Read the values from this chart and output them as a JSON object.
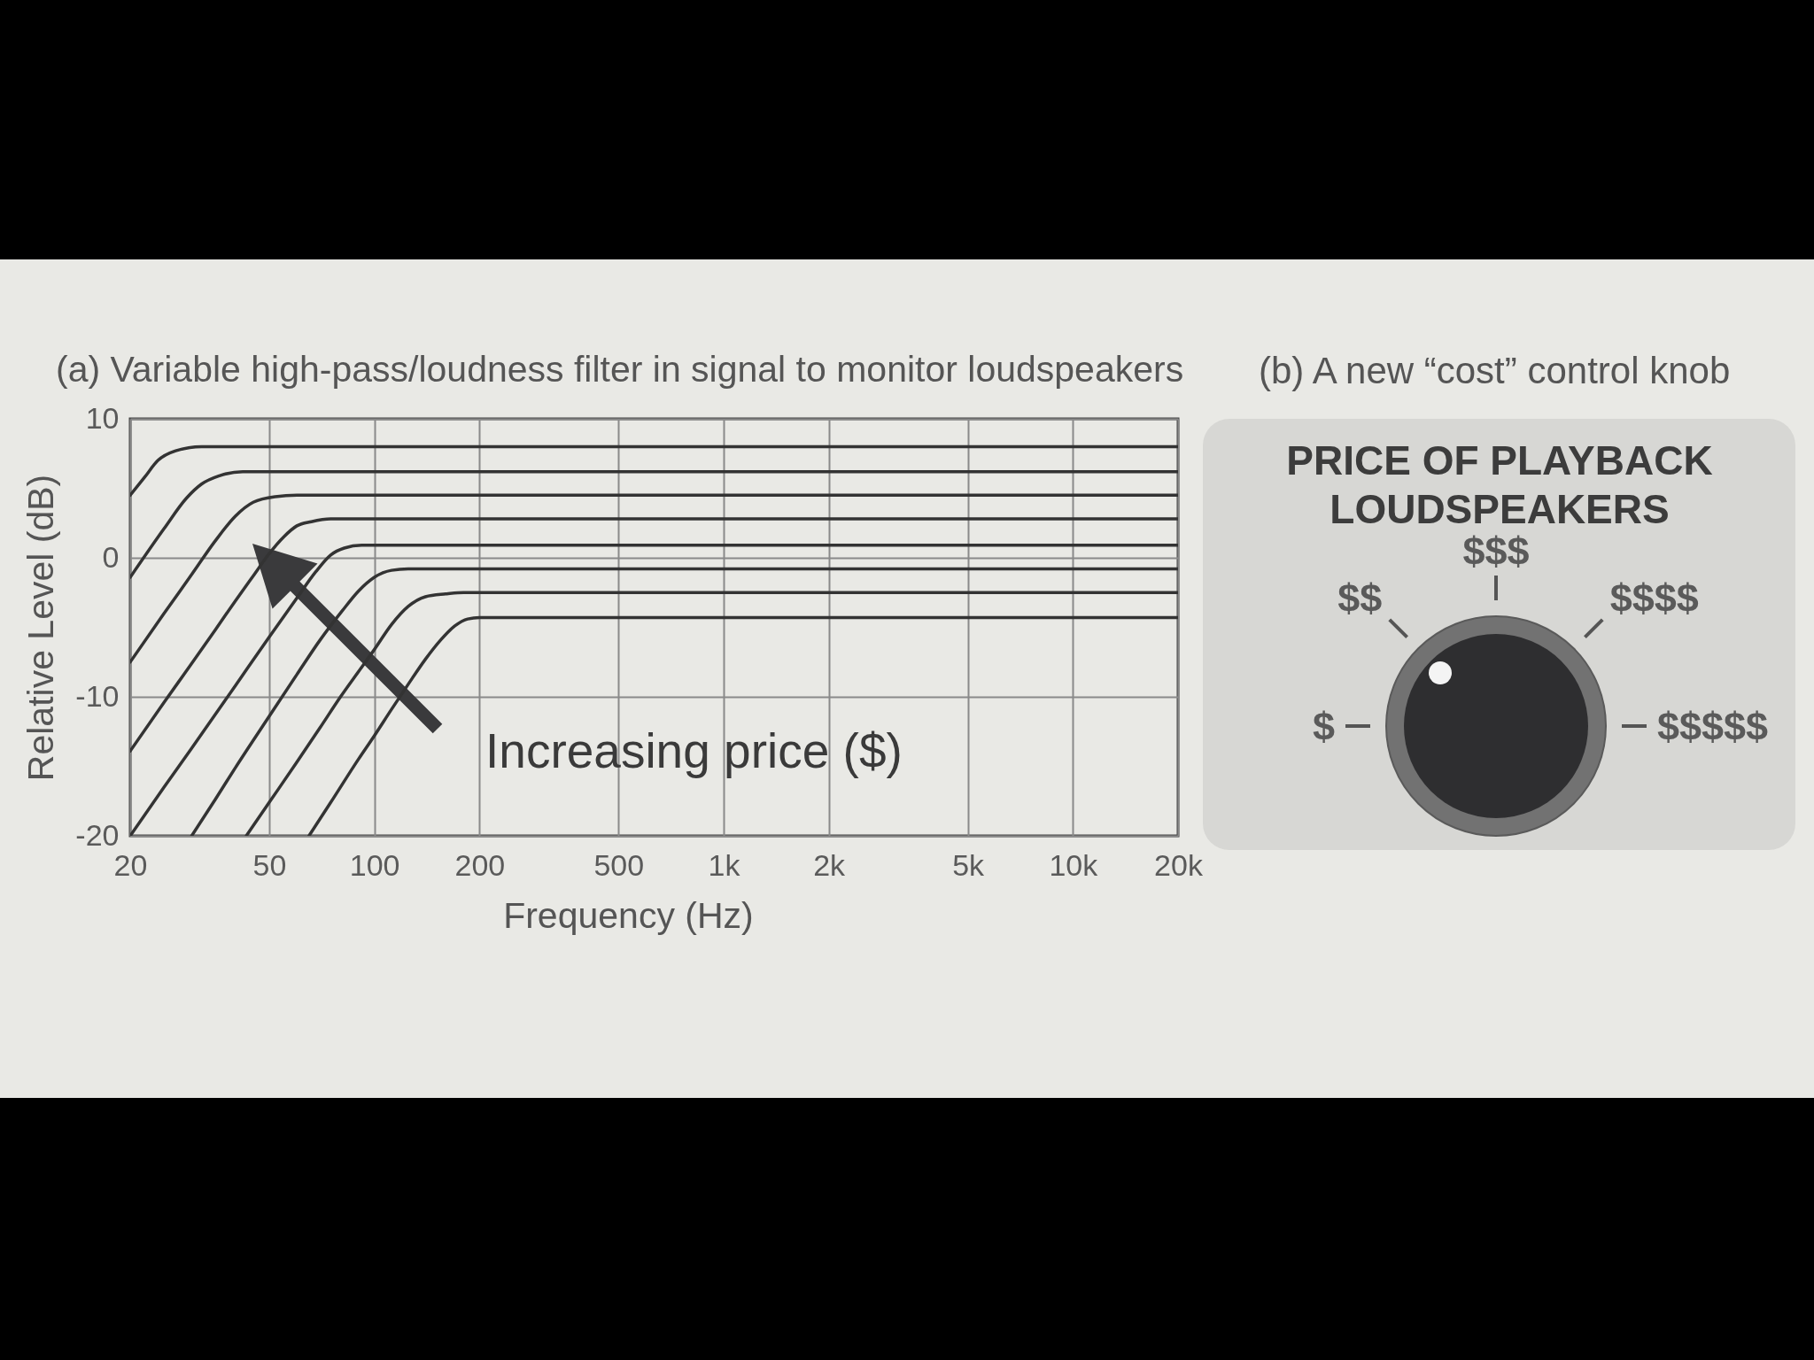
{
  "chart_data": [
    {
      "type": "line",
      "title": "(a) Variable high-pass/loudness filter in signal to monitor loudspeakers",
      "xlabel": "Frequency (Hz)",
      "ylabel": "Relative Level (dB)",
      "annotations": [
        "Increasing price ($)"
      ],
      "log": "x",
      "xlim": [
        20,
        20000
      ],
      "xticks": [
        20,
        50,
        100,
        200,
        500,
        {
          "value": 1000,
          "label": "1k"
        },
        {
          "value": 2000,
          "label": "2k"
        },
        {
          "value": 5000,
          "label": "5k"
        },
        {
          "value": 10000,
          "label": "10k"
        },
        {
          "value": 20000,
          "label": "20k"
        }
      ],
      "ylim": [
        -20,
        10
      ],
      "yticks": [
        -20,
        -10,
        0,
        10
      ],
      "grid": true,
      "series": [
        {
          "color": "#333333",
          "x": [
            20,
            22,
            24,
            27,
            32,
            20000
          ],
          "values": [
            4.5,
            5.8,
            7.0,
            7.7,
            8,
            8
          ]
        },
        {
          "color": "#333333",
          "x": [
            20,
            25,
            29,
            32,
            36,
            42,
            20000
          ],
          "values": [
            -1.4,
            2.1,
            4.3,
            5.3,
            5.9,
            6.2,
            6.2
          ]
        },
        {
          "color": "#333333",
          "x": [
            20,
            25,
            30,
            35,
            40,
            45,
            52,
            60,
            20000
          ],
          "values": [
            -7.5,
            -4,
            -1.2,
            1.2,
            3,
            4,
            4.4,
            4.5,
            4.5
          ]
        },
        {
          "color": "#333333",
          "x": [
            20,
            25,
            30,
            35,
            40,
            45,
            50,
            55,
            60,
            66,
            75,
            20000
          ],
          "values": [
            -13.9,
            -10.4,
            -7.6,
            -5.2,
            -3.1,
            -1.3,
            0.3,
            1.5,
            2.3,
            2.6,
            2.8,
            2.8
          ]
        },
        {
          "color": "#333333",
          "x": [
            20,
            25,
            30,
            40,
            50,
            60,
            68,
            75,
            82,
            92,
            20000
          ],
          "values": [
            -20,
            -16.5,
            -13.7,
            -9.2,
            -5.7,
            -2.9,
            -1,
            0.2,
            0.7,
            0.9,
            0.9
          ]
        },
        {
          "color": "#333333",
          "x": [
            30,
            35,
            40,
            50,
            60,
            70,
            81,
            90,
            100,
            112,
            125,
            20000
          ],
          "values": [
            -20,
            -17.4,
            -15.1,
            -11.4,
            -8.4,
            -5.9,
            -3.8,
            -2.4,
            -1.4,
            -0.9,
            -0.8,
            -0.8
          ]
        },
        {
          "color": "#333333",
          "x": [
            43,
            50,
            60,
            70,
            80,
            90,
            100,
            112,
            125,
            140,
            160,
            180,
            20000
          ],
          "values": [
            -20,
            -17.6,
            -14.7,
            -12.2,
            -10,
            -8.2,
            -6.6,
            -4.8,
            -3.5,
            -2.8,
            -2.6,
            -2.5,
            -2.5
          ]
        },
        {
          "color": "#333333",
          "x": [
            65,
            75,
            90,
            100,
            112,
            125,
            140,
            155,
            170,
            185,
            200,
            20000
          ],
          "values": [
            -20,
            -17.6,
            -14.5,
            -12.8,
            -10.9,
            -9.1,
            -7.3,
            -5.9,
            -4.9,
            -4.4,
            -4.3,
            -4.3
          ]
        }
      ]
    },
    {
      "type": "other",
      "title": "(b) A new “cost” control knob",
      "subtitle": "PRICE OF PLAYBACK LOUDSPEAKERS",
      "annotations": [
        "$",
        "$$",
        "$$$",
        "$$$$",
        "$$$$$"
      ]
    }
  ]
}
